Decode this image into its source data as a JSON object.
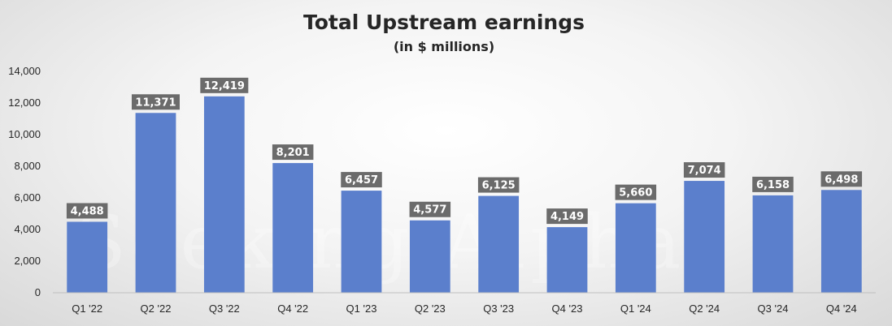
{
  "chart_data": {
    "type": "bar",
    "title": "Total Upstream earnings",
    "subtitle": "(in $ millions)",
    "xlabel": "",
    "ylabel": "",
    "categories": [
      "Q1 '22",
      "Q2 '22",
      "Q3 '22",
      "Q4 '22",
      "Q1 '23",
      "Q2 '23",
      "Q3 '23",
      "Q4 '23",
      "Q1 '24",
      "Q2 '24",
      "Q3 '24",
      "Q4 '24"
    ],
    "values": [
      4488,
      11371,
      12419,
      8201,
      6457,
      4577,
      6125,
      4149,
      5660,
      7074,
      6158,
      6498
    ],
    "value_labels": [
      "4,488",
      "11,371",
      "12,419",
      "8,201",
      "6,457",
      "4,577",
      "6,125",
      "4,149",
      "5,660",
      "7,074",
      "6,158",
      "6,498"
    ],
    "ylim": [
      0,
      14000
    ],
    "yticks": [
      0,
      2000,
      4000,
      6000,
      8000,
      10000,
      12000,
      14000
    ],
    "ytick_labels": [
      "0",
      "2,000",
      "4,000",
      "6,000",
      "8,000",
      "10,000",
      "12,000",
      "14,000"
    ],
    "grid": false,
    "legend": "none",
    "bar_color": "#5b7fcc",
    "label_bg_color": "#6b6b6b",
    "watermark": "Seeking Alpha"
  }
}
